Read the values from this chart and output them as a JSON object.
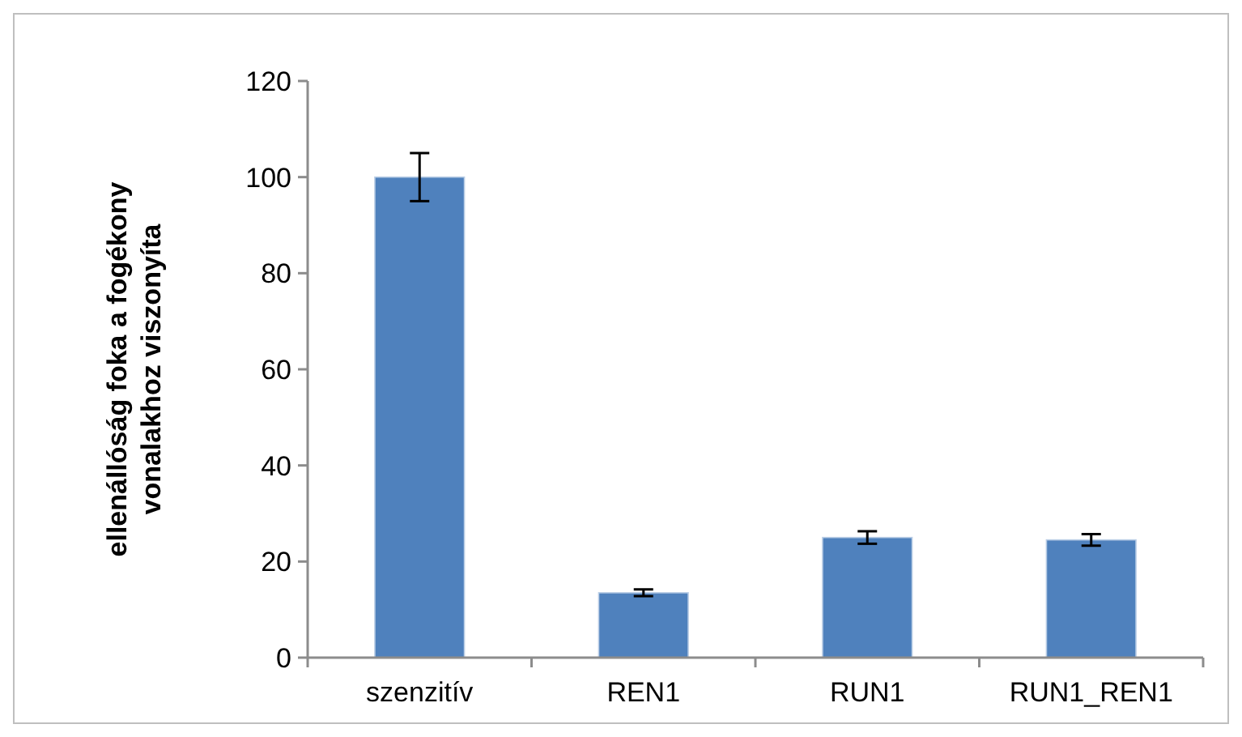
{
  "chart_data": {
    "type": "bar",
    "ylabel": "ellenállóság foka a fogékony vonalakhoz viszonyíta",
    "categories": [
      "szenzitív",
      "REN1",
      "RUN1",
      "RUN1_REN1"
    ],
    "values": [
      100,
      13.5,
      25,
      24.5
    ],
    "errors": [
      5,
      0.7,
      1.3,
      1.2
    ],
    "color": "#4f81bd",
    "ylim": [
      0,
      120
    ],
    "yticks": [
      0,
      20,
      40,
      60,
      80,
      100,
      120
    ],
    "grid": false
  }
}
